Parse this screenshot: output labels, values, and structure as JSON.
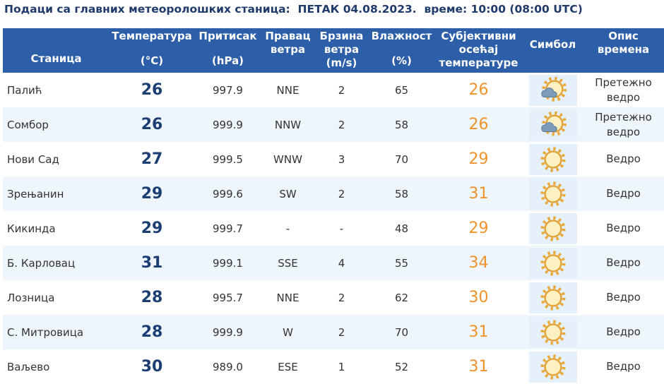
{
  "header": {
    "title": "Подаци са главних метеоролошких станица:  ПЕТАК 04.08.2023.  време: 10:00 (08:00 UTC)"
  },
  "table": {
    "columns": [
      [
        "Станица"
      ],
      [
        "Температура",
        "(°C)"
      ],
      [
        "Притисак",
        "(hPa)"
      ],
      [
        "Правац",
        "ветра"
      ],
      [
        "Брзина",
        "ветра",
        "(m/s)"
      ],
      [
        "Влажност",
        "(%)"
      ],
      [
        "Субјективни",
        "осећај",
        "температуре"
      ],
      [
        "Симбол"
      ],
      [
        "Опис",
        "времена"
      ]
    ],
    "rows": [
      [
        "Палић",
        "26",
        "997.9",
        "NNE",
        "2",
        "65",
        "26",
        "Претежно ведро"
      ],
      [
        "Сомбор",
        "26",
        "999.9",
        "NNW",
        "2",
        "58",
        "26",
        "Претежно ведро"
      ],
      [
        "Нови Сад",
        "27",
        "999.5",
        "WNW",
        "3",
        "70",
        "29",
        "Ведро"
      ],
      [
        "Зрењанин",
        "29",
        "999.6",
        "SW",
        "2",
        "58",
        "31",
        "Ведро"
      ],
      [
        "Кикинда",
        "29",
        "999.7",
        "-",
        "-",
        "48",
        "29",
        "Ведро"
      ],
      [
        "Б. Карловац",
        "31",
        "999.1",
        "SSE",
        "4",
        "55",
        "34",
        "Ведро"
      ],
      [
        "Лозница",
        "28",
        "995.7",
        "NNE",
        "2",
        "62",
        "30",
        "Ведро"
      ],
      [
        "С. Митровица",
        "28",
        "999.9",
        "W",
        "2",
        "70",
        "31",
        "Ведро"
      ],
      [
        "Ваљево",
        "30",
        "989.0",
        "ESE",
        "1",
        "52",
        "31",
        "Ведро"
      ]
    ]
  }
}
